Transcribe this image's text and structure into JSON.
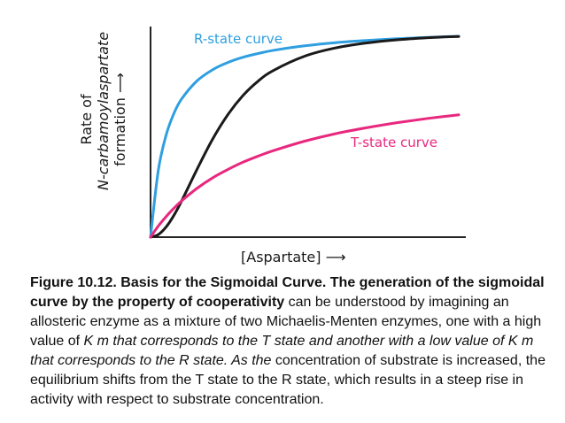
{
  "chart_data": {
    "type": "line",
    "title": "",
    "xlabel": "[Aspartate] ⟶",
    "ylabel_lines": [
      "Rate of",
      "N-carbamoylaspartate",
      "formation ⟶"
    ],
    "xlim": [
      0,
      10
    ],
    "ylim": [
      0,
      1
    ],
    "grid": false,
    "x": [
      0,
      0.25,
      0.5,
      0.75,
      1,
      1.5,
      2,
      2.5,
      3,
      3.5,
      4,
      5,
      6,
      7,
      8,
      9,
      10
    ],
    "series": [
      {
        "name": "R-state curve",
        "color": "#2f9fe0",
        "values": [
          0,
          0.313,
          0.478,
          0.58,
          0.649,
          0.735,
          0.787,
          0.822,
          0.847,
          0.865,
          0.88,
          0.901,
          0.916,
          0.926,
          0.934,
          0.941,
          0.946
        ]
      },
      {
        "name": "",
        "color": "#1a1a1a",
        "values": [
          0,
          0.012,
          0.047,
          0.101,
          0.168,
          0.317,
          0.458,
          0.575,
          0.667,
          0.736,
          0.786,
          0.852,
          0.891,
          0.914,
          0.929,
          0.939,
          0.945
        ]
      },
      {
        "name": "T-state curve",
        "color": "#e8287e",
        "values": [
          0,
          0.052,
          0.096,
          0.135,
          0.17,
          0.229,
          0.278,
          0.318,
          0.353,
          0.382,
          0.408,
          0.452,
          0.487,
          0.515,
          0.539,
          0.559,
          0.576
        ]
      }
    ]
  },
  "caption": {
    "bold": "Figure 10.12. Basis for the Sigmoidal Curve. The generation of the sigmoidal curve by the property of cooperativity",
    "plain_1": " can be understood by imagining an allosteric enzyme as a mixture of two Michaelis-Menten enzymes, one with a high value of ",
    "italic": "K m that corresponds to the T state and another with a low value of K m that corresponds to the R state. As the",
    "plain_2": " concentration of substrate is increased, the equilibrium shifts from the T state to the R state, which results in a steep rise in activity with respect to substrate concentration."
  }
}
